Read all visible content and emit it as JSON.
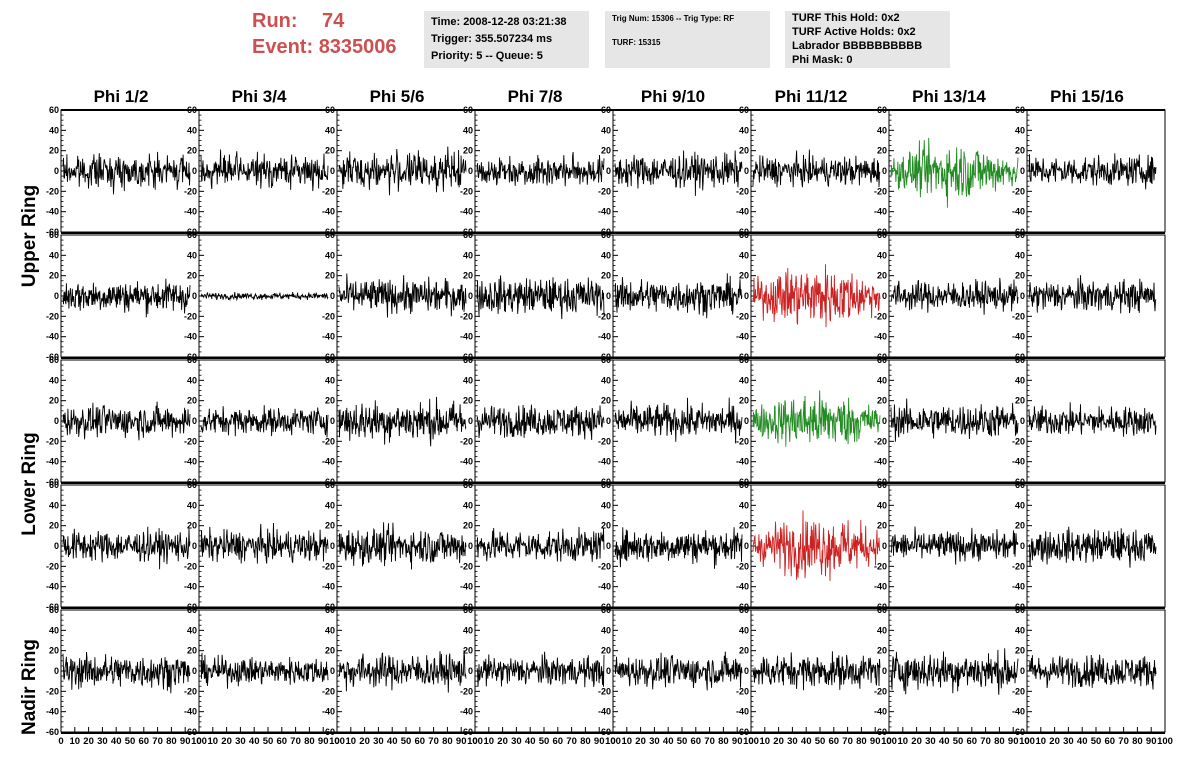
{
  "header": {
    "run_label": "Run:",
    "run_value": "74",
    "event_label": "Event:",
    "event_value": "8335006",
    "time_line": "Time: 2008-12-28 03:21:38",
    "trigger_line": "Trigger: 355.507234 ms",
    "priority_line": "Priority: 5 -- Queue: 5",
    "trig_num_line": "Trig Num: 15306 -- Trig Type: RF",
    "turf_line": "TURF: 15315",
    "turf_hold_line": "TURF This Hold: 0x2",
    "turf_active_line": "TURF Active Holds: 0x2",
    "labrador_line": "Labrador BBBBBBBBBB",
    "phi_mask_line": "Phi Mask: 0"
  },
  "chart_data": {
    "type": "line",
    "columns": [
      "Phi 1/2",
      "Phi 3/4",
      "Phi 5/6",
      "Phi 7/8",
      "Phi 9/10",
      "Phi 11/12",
      "Phi 13/14",
      "Phi 15/16"
    ],
    "ring_labels": [
      {
        "text": "Upper Ring",
        "rows": [
          0,
          1
        ]
      },
      {
        "text": "Lower Ring",
        "rows": [
          2,
          3
        ]
      },
      {
        "text": "Nadir Ring",
        "rows": [
          4
        ]
      }
    ],
    "rows": 5,
    "ylim": [
      -60,
      60
    ],
    "yticks": [
      -60,
      -40,
      -20,
      0,
      20,
      40,
      60
    ],
    "xlim": [
      0,
      100
    ],
    "xticks": [
      0,
      10,
      20,
      30,
      40,
      50,
      60,
      70,
      80,
      90,
      100
    ],
    "samples_per_trace": 260,
    "trace_color": "#000000",
    "highlight_colors": {
      "green": "#228b22",
      "red": "#cc2222"
    },
    "traces": [
      [
        {
          "amp": 14,
          "color": "black"
        },
        {
          "amp": 14,
          "color": "black"
        },
        {
          "amp": 16,
          "color": "black"
        },
        {
          "amp": 13,
          "color": "black"
        },
        {
          "amp": 15,
          "color": "black"
        },
        {
          "amp": 13,
          "color": "black"
        },
        {
          "amp": 22,
          "color": "green"
        },
        {
          "amp": 13,
          "color": "black"
        }
      ],
      [
        {
          "amp": 14,
          "color": "black"
        },
        {
          "amp": 3,
          "color": "black"
        },
        {
          "amp": 15,
          "color": "black"
        },
        {
          "amp": 16,
          "color": "black"
        },
        {
          "amp": 15,
          "color": "black"
        },
        {
          "amp": 24,
          "color": "red"
        },
        {
          "amp": 13,
          "color": "black"
        },
        {
          "amp": 14,
          "color": "black"
        }
      ],
      [
        {
          "amp": 14,
          "color": "black"
        },
        {
          "amp": 12,
          "color": "black"
        },
        {
          "amp": 18,
          "color": "black"
        },
        {
          "amp": 14,
          "color": "black"
        },
        {
          "amp": 15,
          "color": "black"
        },
        {
          "amp": 22,
          "color": "green"
        },
        {
          "amp": 15,
          "color": "black"
        },
        {
          "amp": 13,
          "color": "black"
        }
      ],
      [
        {
          "amp": 14,
          "color": "black"
        },
        {
          "amp": 14,
          "color": "black"
        },
        {
          "amp": 16,
          "color": "black"
        },
        {
          "amp": 14,
          "color": "black"
        },
        {
          "amp": 15,
          "color": "black"
        },
        {
          "amp": 24,
          "color": "red"
        },
        {
          "amp": 13,
          "color": "black"
        },
        {
          "amp": 15,
          "color": "black"
        }
      ],
      [
        {
          "amp": 15,
          "color": "black"
        },
        {
          "amp": 12,
          "color": "black"
        },
        {
          "amp": 15,
          "color": "black"
        },
        {
          "amp": 13,
          "color": "black"
        },
        {
          "amp": 14,
          "color": "black"
        },
        {
          "amp": 15,
          "color": "black"
        },
        {
          "amp": 17,
          "color": "black"
        },
        {
          "amp": 14,
          "color": "black"
        }
      ]
    ]
  }
}
